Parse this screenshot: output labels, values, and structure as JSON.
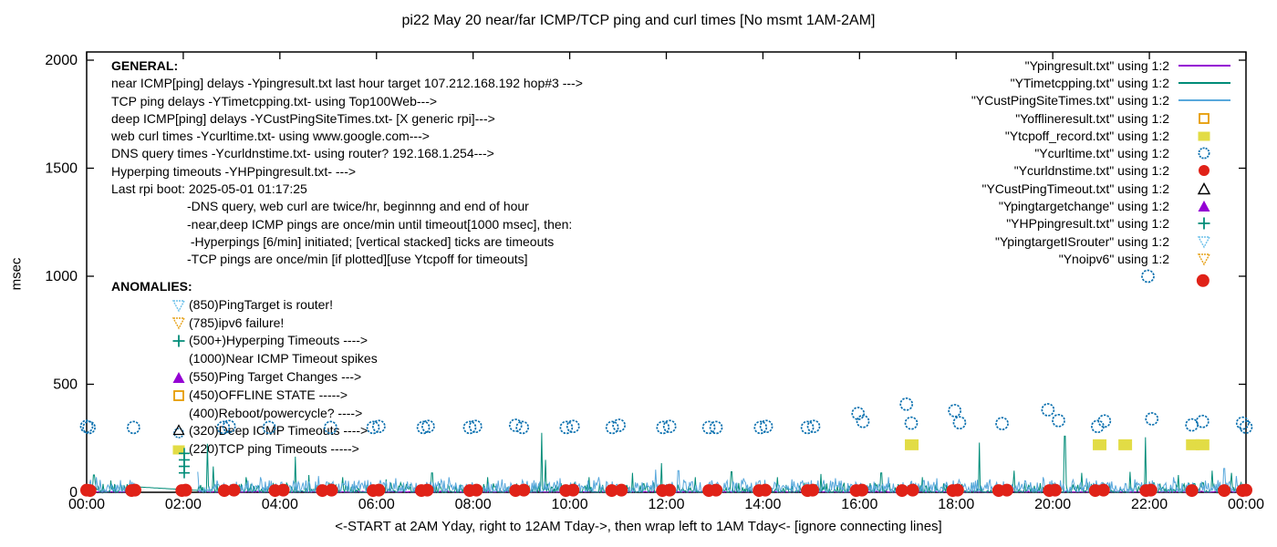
{
  "chart_data": {
    "type": "line",
    "title": "pi22 May 20  near/far ICMP/TCP ping and curl times [No msmt 1AM-2AM]",
    "xlabel": "<-START at 2AM Yday, right to 12AM Tday->, then wrap left to 1AM Tday<- [ignore connecting lines]",
    "ylabel": "msec",
    "x_range_hours": [
      0,
      24
    ],
    "ylim": [
      0,
      2000
    ],
    "x_tick_labels": [
      "00:00",
      "02:00",
      "04:00",
      "06:00",
      "08:00",
      "10:00",
      "12:00",
      "14:00",
      "16:00",
      "18:00",
      "20:00",
      "22:00",
      "00:00"
    ],
    "y_ticks": [
      0,
      500,
      1000,
      1500,
      2000
    ],
    "no_measurement_window_hours": [
      1.05,
      2.3
    ],
    "series": [
      {
        "name": "Ypingresult.txt",
        "desc": "near ICMP ping delays",
        "style": "line",
        "color": "#9400D3",
        "baseline_msec": [
          1,
          6
        ],
        "spikes": []
      },
      {
        "name": "YTimetcpping.txt",
        "desc": "TCP ping delays",
        "style": "line",
        "color": "#008C78",
        "baseline_msec": [
          0,
          45
        ],
        "spikes": [
          [
            0.15,
            80
          ],
          [
            0.5,
            55
          ],
          [
            2.5,
            225
          ],
          [
            2.62,
            120
          ],
          [
            3.3,
            70
          ],
          [
            4.32,
            165
          ],
          [
            4.6,
            80
          ],
          [
            5.3,
            70
          ],
          [
            6.2,
            60
          ],
          [
            7.15,
            90
          ],
          [
            8.3,
            70
          ],
          [
            9.42,
            275
          ],
          [
            9.5,
            150
          ],
          [
            10.4,
            70
          ],
          [
            11.3,
            90
          ],
          [
            11.9,
            135
          ],
          [
            12.6,
            70
          ],
          [
            13.35,
            95
          ],
          [
            14.3,
            70
          ],
          [
            15.2,
            85
          ],
          [
            16.45,
            90
          ],
          [
            17.3,
            70
          ],
          [
            18.48,
            230
          ],
          [
            19.2,
            100
          ],
          [
            20.25,
            260
          ],
          [
            20.6,
            90
          ],
          [
            21.6,
            95
          ],
          [
            21.92,
            255
          ],
          [
            22.6,
            80
          ],
          [
            23.3,
            100
          ],
          [
            23.7,
            90
          ]
        ]
      },
      {
        "name": "YCustPingSiteTimes.txt",
        "desc": "deep ICMP ping delays",
        "style": "line",
        "color": "#58A8DC",
        "baseline_msec": [
          3,
          58
        ],
        "spikes": [
          [
            0.2,
            70
          ],
          [
            2.3,
            95
          ],
          [
            3.6,
            70
          ],
          [
            4.8,
            75
          ],
          [
            6.4,
            65
          ],
          [
            7.5,
            70
          ],
          [
            8.6,
            60
          ],
          [
            9.8,
            65
          ],
          [
            10.6,
            70
          ],
          [
            11.78,
            105
          ],
          [
            12.25,
            100
          ],
          [
            13.6,
            65
          ],
          [
            14.6,
            60
          ],
          [
            15.5,
            65
          ],
          [
            16.6,
            70
          ],
          [
            17.6,
            65
          ],
          [
            18.7,
            60
          ],
          [
            19.8,
            70
          ],
          [
            20.7,
            65
          ],
          [
            21.7,
            60
          ],
          [
            22.5,
            70
          ],
          [
            23.55,
            110
          ],
          [
            23.8,
            75
          ]
        ]
      },
      {
        "name": "Ycurltime.txt",
        "desc": "web curl times",
        "style": "circle-open",
        "color": "#0A70AF",
        "points": [
          [
            0.0,
            305
          ],
          [
            0.05,
            300
          ],
          [
            0.97,
            300
          ],
          [
            2.83,
            300
          ],
          [
            2.95,
            305
          ],
          [
            3.78,
            300
          ],
          [
            5.05,
            300
          ],
          [
            5.93,
            300
          ],
          [
            6.05,
            305
          ],
          [
            6.97,
            300
          ],
          [
            7.07,
            305
          ],
          [
            7.93,
            300
          ],
          [
            8.05,
            305
          ],
          [
            8.88,
            310
          ],
          [
            9.02,
            300
          ],
          [
            9.93,
            300
          ],
          [
            10.07,
            305
          ],
          [
            10.88,
            300
          ],
          [
            11.02,
            310
          ],
          [
            11.93,
            300
          ],
          [
            12.07,
            305
          ],
          [
            12.88,
            300
          ],
          [
            13.03,
            300
          ],
          [
            13.95,
            300
          ],
          [
            14.07,
            305
          ],
          [
            14.92,
            300
          ],
          [
            15.05,
            305
          ],
          [
            15.97,
            365
          ],
          [
            16.07,
            328
          ],
          [
            16.97,
            408
          ],
          [
            17.07,
            320
          ],
          [
            17.97,
            378
          ],
          [
            18.07,
            322
          ],
          [
            18.95,
            318
          ],
          [
            19.9,
            382
          ],
          [
            20.12,
            332
          ],
          [
            20.93,
            305
          ],
          [
            21.07,
            330
          ],
          [
            21.97,
            1000
          ],
          [
            22.05,
            340
          ],
          [
            22.88,
            312
          ],
          [
            23.1,
            328
          ],
          [
            23.93,
            320
          ],
          [
            24.0,
            302
          ]
        ]
      },
      {
        "name": "Ycurldnstime.txt",
        "desc": "DNS query times",
        "style": "circle-filled",
        "color": "#E02218",
        "points": [
          [
            0.0,
            10
          ],
          [
            0.07,
            8
          ],
          [
            0.93,
            8
          ],
          [
            1.0,
            10
          ],
          [
            1.97,
            8
          ],
          [
            2.05,
            10
          ],
          [
            2.85,
            8
          ],
          [
            3.05,
            10
          ],
          [
            3.9,
            8
          ],
          [
            4.07,
            10
          ],
          [
            4.88,
            8
          ],
          [
            5.07,
            10
          ],
          [
            5.93,
            8
          ],
          [
            6.05,
            10
          ],
          [
            6.93,
            8
          ],
          [
            7.05,
            10
          ],
          [
            7.93,
            8
          ],
          [
            8.07,
            10
          ],
          [
            8.88,
            8
          ],
          [
            9.05,
            10
          ],
          [
            9.92,
            8
          ],
          [
            10.07,
            10
          ],
          [
            10.87,
            8
          ],
          [
            11.07,
            10
          ],
          [
            11.92,
            8
          ],
          [
            12.07,
            10
          ],
          [
            12.88,
            8
          ],
          [
            13.03,
            10
          ],
          [
            13.92,
            8
          ],
          [
            14.05,
            10
          ],
          [
            14.92,
            8
          ],
          [
            15.03,
            10
          ],
          [
            15.93,
            8
          ],
          [
            16.05,
            10
          ],
          [
            16.88,
            8
          ],
          [
            17.1,
            10
          ],
          [
            17.93,
            8
          ],
          [
            18.03,
            10
          ],
          [
            18.88,
            8
          ],
          [
            19.05,
            10
          ],
          [
            19.93,
            8
          ],
          [
            20.05,
            10
          ],
          [
            20.88,
            8
          ],
          [
            21.05,
            10
          ],
          [
            21.93,
            8
          ],
          [
            22.03,
            10
          ],
          [
            22.88,
            8
          ],
          [
            23.11,
            980
          ],
          [
            23.55,
            8
          ],
          [
            23.93,
            8
          ],
          [
            24.0,
            10
          ]
        ]
      },
      {
        "name": "Ytcpoff_record.txt",
        "desc": "TCP ping timeouts",
        "style": "square-filled",
        "color": "#E2DC45",
        "points": [
          [
            17.08,
            220
          ],
          [
            20.97,
            220
          ],
          [
            21.5,
            220
          ],
          [
            22.9,
            220
          ],
          [
            23.1,
            220
          ]
        ]
      },
      {
        "name": "YHPpingresult.txt",
        "desc": "Hyperping timeouts",
        "style": "plus",
        "color": "#008C78",
        "points": [
          [
            2.02,
            90
          ],
          [
            2.02,
            120
          ],
          [
            2.02,
            150
          ],
          [
            2.02,
            180
          ]
        ]
      }
    ]
  },
  "general": {
    "heading": "GENERAL:",
    "lines": [
      "near ICMP[ping] delays -Ypingresult.txt last hour target 107.212.168.192 hop#3 --->",
      "TCP ping delays -YTimetcpping.txt- using Top100Web--->",
      "deep ICMP[ping] delays -YCustPingSiteTimes.txt- [X generic rpi]--->",
      "web curl times -Ycurltime.txt- using www.google.com--->",
      "DNS query times -Ycurldnstime.txt- using router? 192.168.1.254--->",
      "Hyperping timeouts -YHPpingresult.txt- --->",
      "Last rpi boot: 2025-05-01 01:17:25"
    ],
    "notes": [
      "-DNS query, web curl are twice/hr, beginnng and end of hour",
      "-near,deep ICMP pings are once/min until timeout[1000 msec], then:",
      " -Hyperpings [6/min] initiated; [vertical stacked] ticks are timeouts",
      "-TCP pings are once/min [if plotted][use Ytcpoff for timeouts]"
    ]
  },
  "anomalies": {
    "heading": "ANOMALIES:",
    "items": [
      {
        "marker": "tri-down-open",
        "color": "#6CC0EA",
        "text": "(850)PingTarget is router!"
      },
      {
        "marker": "tri-down-open",
        "color": "#E6A117",
        "text": "(785)ipv6 failure!"
      },
      {
        "marker": "plus",
        "color": "#008C78",
        "text": "(500+)Hyperping Timeouts ---->"
      },
      {
        "marker": "none",
        "color": "",
        "text": "(1000)Near ICMP Timeout spikes"
      },
      {
        "marker": "tri-up-filled",
        "color": "#9400D3",
        "text": "(550)Ping Target Changes --->"
      },
      {
        "marker": "square-open",
        "color": "#E69B00",
        "text": "(450)OFFLINE STATE ----->"
      },
      {
        "marker": "none",
        "color": "",
        "text": "(400)Reboot/powercycle? ---->"
      },
      {
        "marker": "tri-circle",
        "color": "#000000",
        "text": "(320)Deep ICMP Timeouts ---->"
      },
      {
        "marker": "square-filled",
        "color": "#E2DC45",
        "text": "(220)TCP ping Timeouts ----->"
      }
    ]
  },
  "legend": [
    {
      "label": "\"Ypingresult.txt\" using 1:2",
      "marker": "line",
      "color": "#9400D3"
    },
    {
      "label": "\"YTimetcpping.txt\" using 1:2",
      "marker": "line",
      "color": "#008C78"
    },
    {
      "label": "\"YCustPingSiteTimes.txt\" using 1:2",
      "marker": "line",
      "color": "#58A8DC"
    },
    {
      "label": "\"Yofflineresult.txt\" using 1:2",
      "marker": "square-open",
      "color": "#E69B00"
    },
    {
      "label": "\"Ytcpoff_record.txt\" using 1:2",
      "marker": "square-filled",
      "color": "#E2DC45"
    },
    {
      "label": "\"Ycurltime.txt\" using 1:2",
      "marker": "circle-open",
      "color": "#0A70AF"
    },
    {
      "label": "\"Ycurldnstime.txt\" using 1:2",
      "marker": "circle-filled",
      "color": "#E02218"
    },
    {
      "label": "\"YCustPingTimeout.txt\" using 1:2",
      "marker": "tri-up-open",
      "color": "#000000"
    },
    {
      "label": "\"Ypingtargetchange\" using 1:2",
      "marker": "tri-up-filled",
      "color": "#9400D3"
    },
    {
      "label": "\"YHPpingresult.txt\" using 1:2",
      "marker": "plus",
      "color": "#008C78"
    },
    {
      "label": "\"YpingtargetISrouter\" using 1:2",
      "marker": "tri-down-open",
      "color": "#6CC0EA"
    },
    {
      "label": "\"Ynoipv6\" using 1:2",
      "marker": "tri-down-open",
      "color": "#E6A117"
    }
  ]
}
